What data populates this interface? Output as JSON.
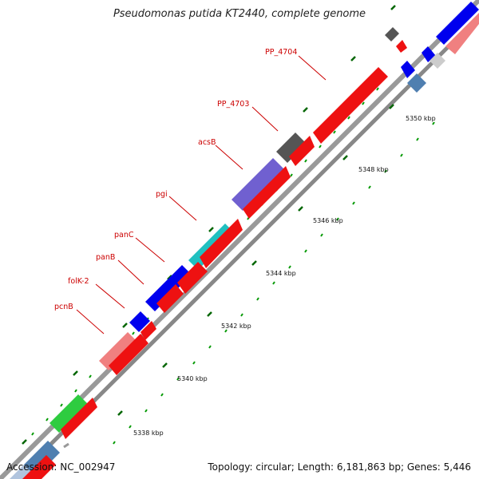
{
  "title": "Pseudomonas putida KT2440, complete genome",
  "accession": "Accession: NC_002947",
  "summary": "Topology: circular; Length: 6,181,863 bp; Genes: 5,446",
  "colors": {
    "forward_track": "#ee1111",
    "line": "#888888",
    "label": "#cc0000",
    "tick_major": "#006600",
    "tick_minor": "#009900"
  },
  "kbp_ticks": [
    "5338 kbp",
    "5340 kbp",
    "5342 kbp",
    "5344 kbp",
    "5346 kbp",
    "5348 kbp",
    "5350 kbp"
  ],
  "gene_labels": [
    "pcnB",
    "folK-2",
    "panB",
    "panC",
    "pgi",
    "acsB",
    "PP_4703",
    "PP_4704"
  ]
}
